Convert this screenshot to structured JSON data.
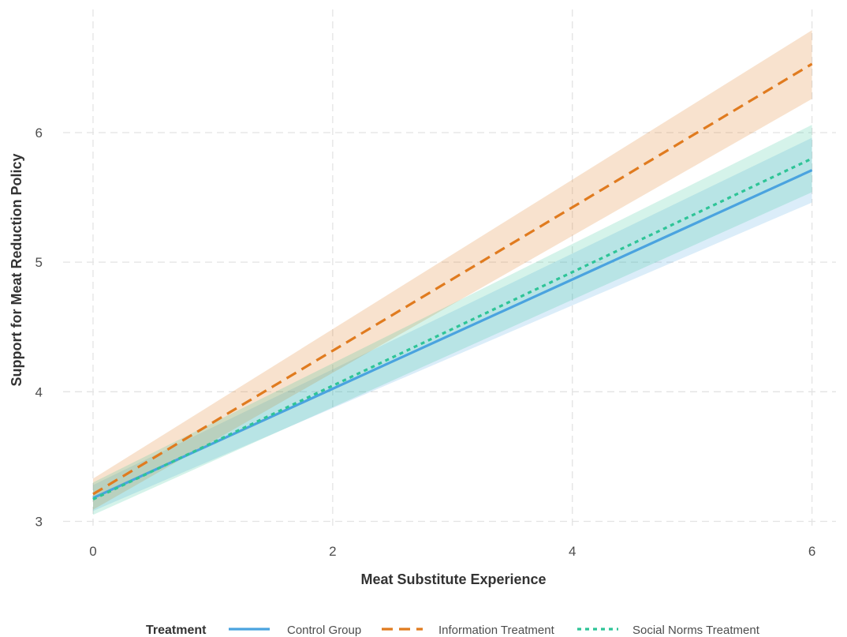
{
  "chart_data": {
    "type": "line",
    "xlabel": "Meat Substitute Experience",
    "ylabel": "Support for Meat Reduction Policy",
    "xlim": [
      -0.25,
      6.2
    ],
    "ylim": [
      2.93,
      6.95
    ],
    "x_ticks": [
      0,
      2,
      4,
      6
    ],
    "y_ticks": [
      3,
      4,
      5,
      6
    ],
    "grid": true,
    "grid_style": "dashed",
    "legend": {
      "title": "Treatment",
      "placement": "bottom"
    },
    "series": [
      {
        "name": "Control Group",
        "color": "#4aa3df",
        "dash": "solid",
        "x": [
          0,
          6
        ],
        "y": [
          3.18,
          5.71
        ],
        "ci_lower": [
          3.08,
          5.46
        ],
        "ci_upper": [
          3.28,
          5.96
        ]
      },
      {
        "name": "Information Treatment",
        "color": "#e07b1f",
        "dash": "dashed",
        "x": [
          0,
          6
        ],
        "y": [
          3.21,
          6.53
        ],
        "ci_lower": [
          3.09,
          6.26
        ],
        "ci_upper": [
          3.33,
          6.79
        ]
      },
      {
        "name": "Social Norms Treatment",
        "color": "#2ec497",
        "dash": "dotted",
        "x": [
          0,
          6
        ],
        "y": [
          3.17,
          5.8
        ],
        "ci_lower": [
          3.05,
          5.54
        ],
        "ci_upper": [
          3.3,
          6.06
        ]
      }
    ]
  }
}
